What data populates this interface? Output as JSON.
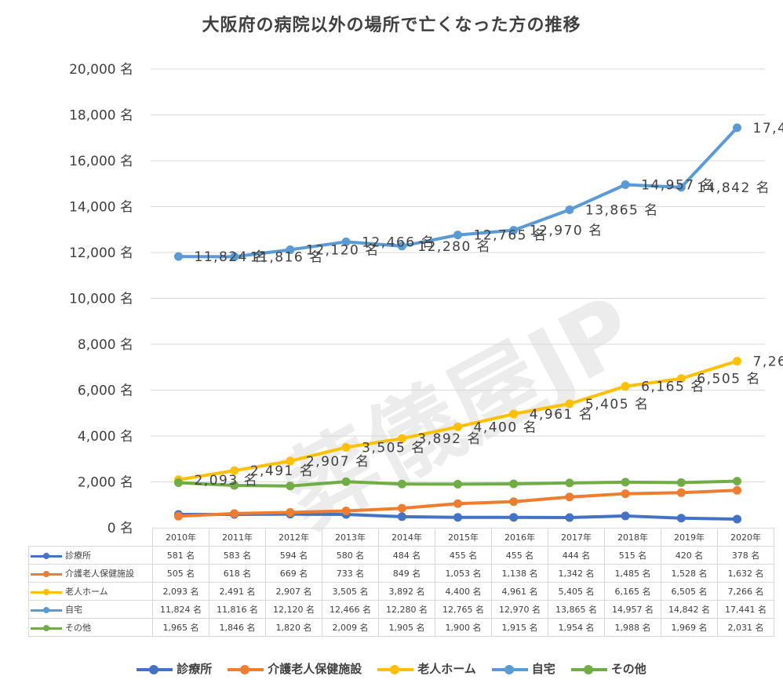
{
  "watermark": "葬儀屋JP",
  "chart_data": {
    "type": "line",
    "title": "大阪府の病院以外の場所で亡くなった方の推移",
    "categories": [
      "2010年",
      "2011年",
      "2012年",
      "2013年",
      "2014年",
      "2015年",
      "2016年",
      "2017年",
      "2018年",
      "2019年",
      "2020年"
    ],
    "ylim": [
      0,
      20000
    ],
    "yticks": [
      "0 名",
      "2,000 名",
      "4,000 名",
      "6,000 名",
      "8,000 名",
      "10,000 名",
      "12,000 名",
      "14,000 名",
      "16,000 名",
      "18,000 名",
      "20,000 名"
    ],
    "grid": true,
    "legend_position": "bottom",
    "series": [
      {
        "name": "診療所",
        "color": "#4472c4",
        "labels_on_chart": false,
        "values": [
          581,
          583,
          594,
          580,
          484,
          455,
          455,
          444,
          515,
          420,
          378
        ],
        "labels": [
          "581 名",
          "583 名",
          "594 名",
          "580 名",
          "484 名",
          "455 名",
          "455 名",
          "444 名",
          "515 名",
          "420 名",
          "378 名"
        ]
      },
      {
        "name": "介護老人保健施設",
        "color": "#ed7d31",
        "labels_on_chart": false,
        "values": [
          505,
          618,
          669,
          733,
          849,
          1053,
          1138,
          1342,
          1485,
          1528,
          1632
        ],
        "labels": [
          "505 名",
          "618 名",
          "669 名",
          "733 名",
          "849 名",
          "1,053 名",
          "1,138 名",
          "1,342 名",
          "1,485 名",
          "1,528 名",
          "1,632 名"
        ]
      },
      {
        "name": "老人ホーム",
        "color": "#ffc000",
        "labels_on_chart": true,
        "values": [
          2093,
          2491,
          2907,
          3505,
          3892,
          4400,
          4961,
          5405,
          6165,
          6505,
          7266
        ],
        "labels": [
          "2,093 名",
          "2,491 名",
          "2,907 名",
          "3,505 名",
          "3,892 名",
          "4,400 名",
          "4,961 名",
          "5,405 名",
          "6,165 名",
          "6,505 名",
          "7,266 名"
        ]
      },
      {
        "name": "自宅",
        "color": "#5b9bd5",
        "labels_on_chart": true,
        "values": [
          11824,
          11816,
          12120,
          12466,
          12280,
          12765,
          12970,
          13865,
          14957,
          14842,
          17441
        ],
        "labels": [
          "11,824 名",
          "11,816 名",
          "12,120 名",
          "12,466 名",
          "12,280 名",
          "12,765 名",
          "12,970 名",
          "13,865 名",
          "14,957 名",
          "14,842 名",
          "17,441 名"
        ]
      },
      {
        "name": "その他",
        "color": "#70ad47",
        "labels_on_chart": false,
        "values": [
          1965,
          1846,
          1820,
          2009,
          1905,
          1900,
          1915,
          1954,
          1988,
          1969,
          2031
        ],
        "labels": [
          "1,965 名",
          "1,846 名",
          "1,820 名",
          "2,009 名",
          "1,905 名",
          "1,900 名",
          "1,915 名",
          "1,954 名",
          "1,988 名",
          "1,969 名",
          "2,031 名"
        ]
      }
    ]
  }
}
